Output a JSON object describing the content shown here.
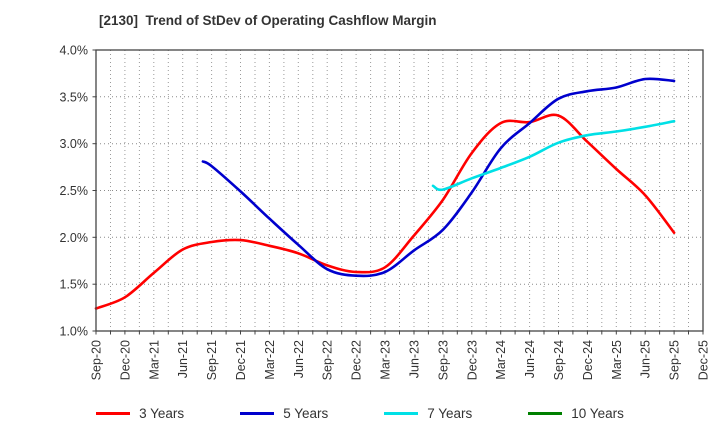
{
  "chart_data": {
    "type": "line",
    "title": "[2130]  Trend of StDev of Operating Cashflow Margin",
    "title_color": "#333333",
    "xlabel": "",
    "ylabel": "",
    "ylim": [
      1.0,
      4.0
    ],
    "ytick_labels": [
      "4.0%",
      "3.5%",
      "3.0%",
      "2.5%",
      "2.0%",
      "1.5%",
      "1.0%"
    ],
    "x_labels": [
      "Sep-20",
      "Dec-20",
      "Mar-21",
      "Jun-21",
      "Sep-21",
      "Dec-21",
      "Mar-22",
      "Jun-22",
      "Sep-22",
      "Dec-22",
      "Mar-23",
      "Jun-23",
      "Sep-23",
      "Dec-23",
      "Mar-24",
      "Jun-24",
      "Sep-24",
      "Dec-24",
      "Mar-25",
      "Jun-25",
      "Sep-25",
      "Dec-25"
    ],
    "grid": true,
    "grid_style": "dotted",
    "legend_position": "bottom",
    "axis_color": "#444444",
    "tick_label_color": "#333333",
    "series": [
      {
        "name": "3 Years",
        "color": "#ff0000",
        "x_index": [
          0,
          1,
          2,
          3,
          4,
          5,
          6,
          7,
          8,
          9,
          10,
          11,
          12,
          13,
          14,
          15,
          16,
          17,
          18,
          19,
          20
        ],
        "values": [
          1.24,
          1.36,
          1.62,
          1.87,
          1.95,
          1.97,
          1.91,
          1.83,
          1.7,
          1.63,
          1.68,
          2.02,
          2.4,
          2.9,
          3.22,
          3.23,
          3.3,
          3.02,
          2.73,
          2.45,
          2.05
        ]
      },
      {
        "name": "5 Years",
        "color": "#0000cd",
        "x_index": [
          3.7,
          4,
          5,
          6,
          7,
          8,
          9,
          10,
          11,
          12,
          13,
          14,
          15,
          16,
          17,
          18,
          19,
          20
        ],
        "values": [
          2.81,
          2.76,
          2.49,
          2.2,
          1.92,
          1.66,
          1.59,
          1.63,
          1.86,
          2.08,
          2.48,
          2.95,
          3.22,
          3.48,
          3.56,
          3.6,
          3.69,
          3.67
        ]
      },
      {
        "name": "7 Years",
        "color": "#00e0e6",
        "x_index": [
          11.66,
          12,
          13,
          14,
          15,
          16,
          17,
          18,
          19,
          20
        ],
        "values": [
          2.55,
          2.51,
          2.63,
          2.74,
          2.86,
          3.01,
          3.09,
          3.13,
          3.18,
          3.24
        ]
      },
      {
        "name": "10 Years",
        "color": "#008000",
        "x_index": [],
        "values": []
      }
    ]
  }
}
